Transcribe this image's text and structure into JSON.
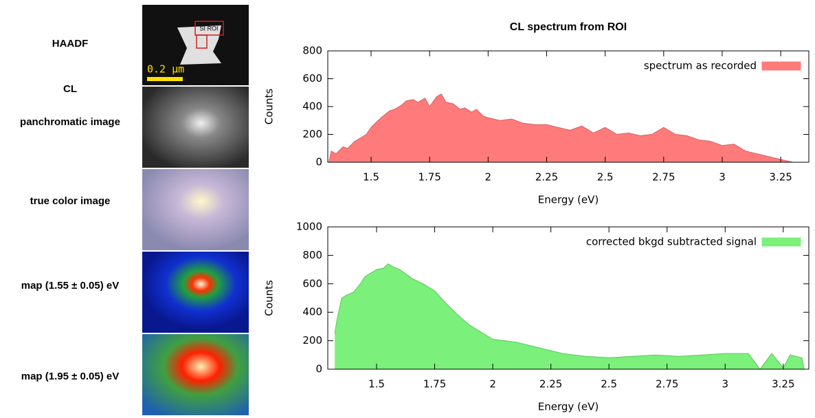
{
  "panels": {
    "labels": [
      "HAADF",
      "CL",
      "panchromatic image",
      "true color image",
      "map (1.55 ± 0.05) eV",
      "map (1.95 ± 0.05) eV"
    ],
    "roi_label": "SI ROI",
    "scale_bar": "0.2 µm"
  },
  "chart_data": [
    {
      "type": "area",
      "title": "CL spectrum from ROI",
      "x_label": "Energy (eV)",
      "y_label": "Counts",
      "legend": "upper right",
      "xlim": [
        1.315,
        3.37
      ],
      "xticks": [
        1.5,
        1.75,
        2,
        2.25,
        2.5,
        2.75,
        3,
        3.25
      ],
      "ylim": [
        0,
        800
      ],
      "yticks": [
        0,
        200,
        400,
        600,
        800
      ],
      "x": [
        1.32,
        1.33,
        1.35,
        1.38,
        1.4,
        1.43,
        1.45,
        1.48,
        1.5,
        1.53,
        1.55,
        1.58,
        1.6,
        1.63,
        1.65,
        1.68,
        1.7,
        1.73,
        1.75,
        1.78,
        1.8,
        1.82,
        1.85,
        1.88,
        1.9,
        1.93,
        1.95,
        1.98,
        2.0,
        2.05,
        2.1,
        2.15,
        2.2,
        2.25,
        2.3,
        2.35,
        2.4,
        2.45,
        2.5,
        2.55,
        2.6,
        2.65,
        2.7,
        2.75,
        2.8,
        2.85,
        2.9,
        2.95,
        3.0,
        3.05,
        3.1,
        3.15,
        3.2,
        3.25,
        3.3
      ],
      "series": [
        {
          "name": "spectrum as recorded",
          "color": "#ff7b7b",
          "values": [
            0,
            80,
            60,
            110,
            100,
            150,
            170,
            200,
            250,
            300,
            330,
            370,
            380,
            410,
            440,
            450,
            430,
            460,
            400,
            470,
            490,
            430,
            420,
            380,
            390,
            360,
            380,
            330,
            320,
            300,
            310,
            280,
            270,
            270,
            250,
            230,
            260,
            210,
            250,
            200,
            210,
            190,
            200,
            250,
            200,
            190,
            160,
            150,
            120,
            130,
            80,
            60,
            40,
            20,
            0
          ]
        }
      ]
    },
    {
      "type": "area",
      "x_label": "Energy (eV)",
      "y_label": "Counts",
      "legend": "upper right",
      "xlim": [
        1.29,
        3.36
      ],
      "xticks": [
        1.5,
        1.75,
        2,
        2.25,
        2.5,
        2.75,
        3,
        3.25
      ],
      "ylim": [
        0,
        1000
      ],
      "yticks": [
        0,
        200,
        400,
        600,
        800,
        1000
      ],
      "x": [
        1.32,
        1.33,
        1.35,
        1.37,
        1.4,
        1.43,
        1.45,
        1.48,
        1.5,
        1.53,
        1.55,
        1.57,
        1.6,
        1.65,
        1.7,
        1.75,
        1.8,
        1.85,
        1.9,
        1.95,
        2.0,
        2.05,
        2.1,
        2.15,
        2.2,
        2.25,
        2.3,
        2.35,
        2.4,
        2.5,
        2.6,
        2.7,
        2.8,
        2.9,
        3.0,
        3.05,
        3.1,
        3.15,
        3.2,
        3.25,
        3.28,
        3.33,
        3.34
      ],
      "series": [
        {
          "name": "corrected bkgd subtracted signal",
          "color": "#7bf07b",
          "values": [
            250,
            350,
            500,
            520,
            540,
            600,
            650,
            680,
            700,
            710,
            740,
            720,
            700,
            640,
            600,
            550,
            460,
            380,
            310,
            260,
            210,
            200,
            190,
            170,
            150,
            130,
            110,
            100,
            90,
            80,
            90,
            100,
            90,
            100,
            110,
            110,
            110,
            0,
            110,
            10,
            100,
            80,
            0
          ]
        }
      ]
    }
  ]
}
